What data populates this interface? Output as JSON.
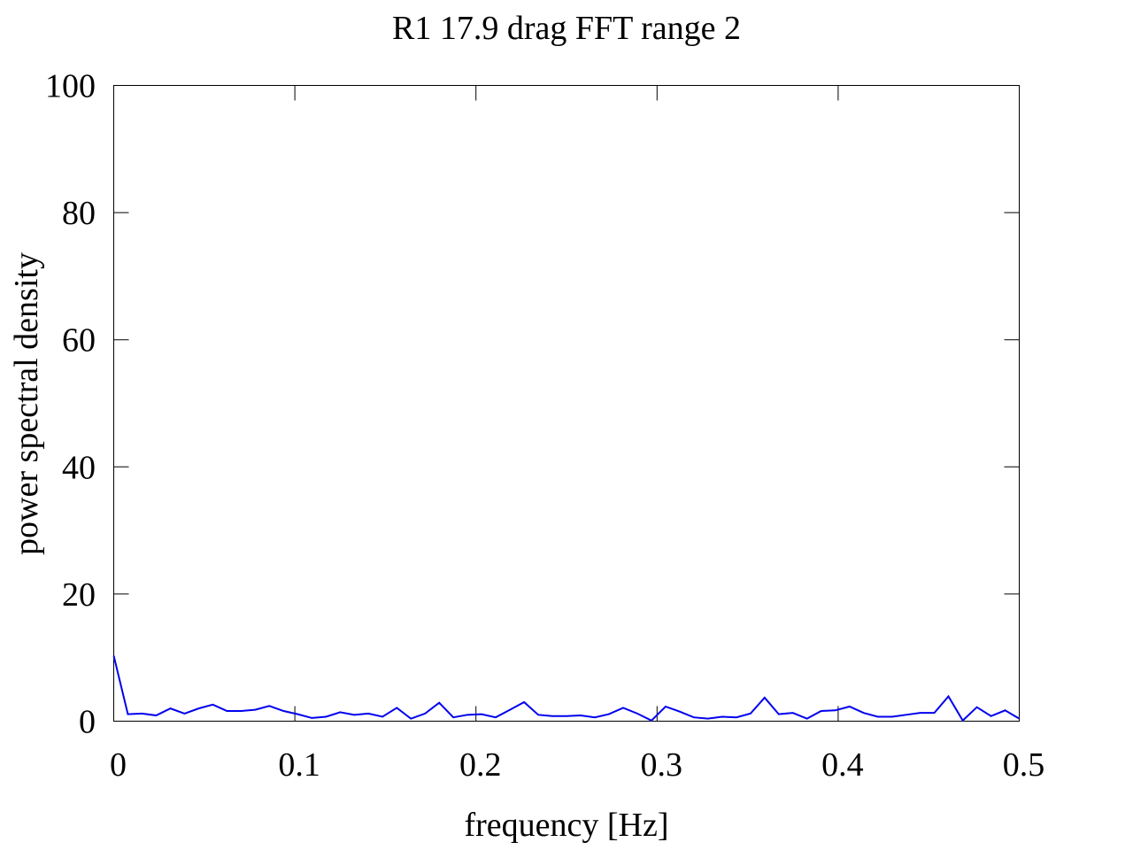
{
  "chart_data": {
    "type": "line",
    "title": "R1 17.9 drag FFT range 2",
    "xlabel": "frequency [Hz]",
    "ylabel": "power spectral density",
    "xlim": [
      0,
      0.5
    ],
    "ylim": [
      0,
      100
    ],
    "xticks": [
      0,
      0.1,
      0.2,
      0.3,
      0.4,
      0.5
    ],
    "xtick_labels": [
      "0",
      "0.1",
      "0.2",
      "0.3",
      "0.4",
      "0.5"
    ],
    "yticks": [
      0,
      20,
      40,
      60,
      80,
      100
    ],
    "ytick_labels": [
      "0",
      "20",
      "40",
      "60",
      "80",
      "100"
    ],
    "grid": false,
    "series": [
      {
        "color": "#0000ee",
        "x": [
          0,
          0.0078,
          0.0156,
          0.0234,
          0.0313,
          0.0391,
          0.0469,
          0.0547,
          0.0625,
          0.0703,
          0.0781,
          0.0859,
          0.0938,
          0.1016,
          0.1094,
          0.1172,
          0.125,
          0.1328,
          0.1406,
          0.1484,
          0.1563,
          0.1641,
          0.1719,
          0.1797,
          0.1875,
          0.1953,
          0.2031,
          0.2109,
          0.2188,
          0.2266,
          0.2344,
          0.2422,
          0.25,
          0.2578,
          0.2656,
          0.2734,
          0.2813,
          0.2891,
          0.2969,
          0.3047,
          0.3125,
          0.3203,
          0.3281,
          0.3359,
          0.3438,
          0.3516,
          0.3594,
          0.3672,
          0.375,
          0.3828,
          0.3906,
          0.3984,
          0.4063,
          0.4141,
          0.4219,
          0.4297,
          0.4375,
          0.4453,
          0.4531,
          0.4609,
          0.4688,
          0.4766,
          0.4844,
          0.4922,
          0.5
        ],
        "values": [
          10.3,
          1.1,
          1.2,
          0.9,
          2.0,
          1.2,
          2.0,
          2.6,
          1.6,
          1.6,
          1.8,
          2.4,
          1.6,
          1.1,
          0.5,
          0.7,
          1.4,
          1.0,
          1.2,
          0.7,
          2.1,
          0.4,
          1.2,
          2.9,
          0.6,
          1.0,
          1.1,
          0.6,
          1.8,
          3.0,
          1.0,
          0.8,
          0.8,
          0.9,
          0.6,
          1.1,
          2.1,
          1.2,
          0.1,
          2.3,
          1.5,
          0.6,
          0.4,
          0.7,
          0.6,
          1.2,
          3.7,
          1.1,
          1.3,
          0.4,
          1.6,
          1.7,
          2.3,
          1.3,
          0.7,
          0.7,
          1.0,
          1.3,
          1.3,
          3.9,
          0.1,
          2.2,
          0.8,
          1.7,
          0.4
        ]
      }
    ]
  }
}
